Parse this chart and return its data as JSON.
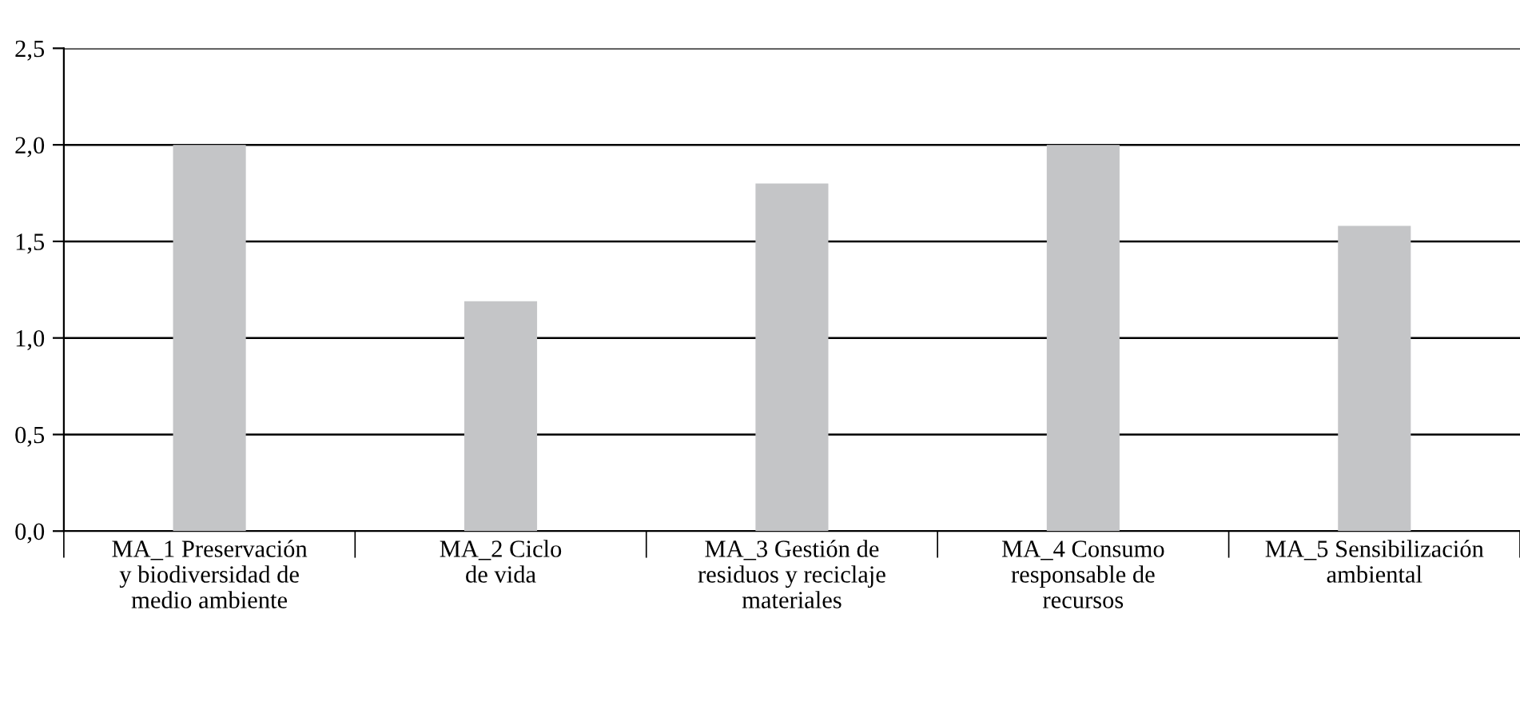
{
  "chart_data": {
    "type": "bar",
    "categories": [
      "MA_1 Preservación\ny biodiversidad de\nmedio ambiente",
      "MA_2 Ciclo\nde vida",
      "MA_3 Gestión de\nresiduos y reciclaje\nmateriales",
      "MA_4 Consumo\nresponsable de\nrecursos",
      "MA_5 Sensibilización\nambiental"
    ],
    "values": [
      2.0,
      1.19,
      1.8,
      2.0,
      1.58
    ],
    "color": "#c4c5c7",
    "ylim": [
      0,
      2.5
    ],
    "yticks": [
      {
        "value": 0,
        "label": "0,0"
      },
      {
        "value": 0.5,
        "label": "0,5"
      },
      {
        "value": 1.0,
        "label": "1,0"
      },
      {
        "value": 1.5,
        "label": "1,5"
      },
      {
        "value": 2.0,
        "label": "2,0"
      },
      {
        "value": 2.5,
        "label": "2,5"
      }
    ],
    "grid": "y"
  }
}
